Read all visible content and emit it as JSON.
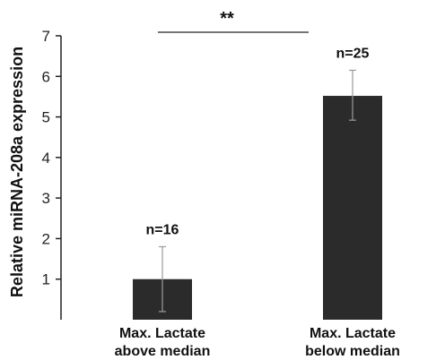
{
  "chart_data": {
    "type": "bar",
    "ylabel": "Relative miRNA-208a expression",
    "ylim": [
      0,
      7
    ],
    "yticks": [
      "1",
      "2",
      "3",
      "4",
      "5",
      "6",
      "7"
    ],
    "categories": [
      [
        "Max. Lactate",
        "above median"
      ],
      [
        "Max. Lactate",
        "below median"
      ]
    ],
    "values": [
      1.0,
      5.52
    ],
    "error_low": [
      0.2,
      4.92
    ],
    "error_high": [
      1.8,
      6.15
    ],
    "n_labels": [
      "n=16",
      "n=25"
    ],
    "significance": "**",
    "bar_color": "#2b2b2b"
  }
}
